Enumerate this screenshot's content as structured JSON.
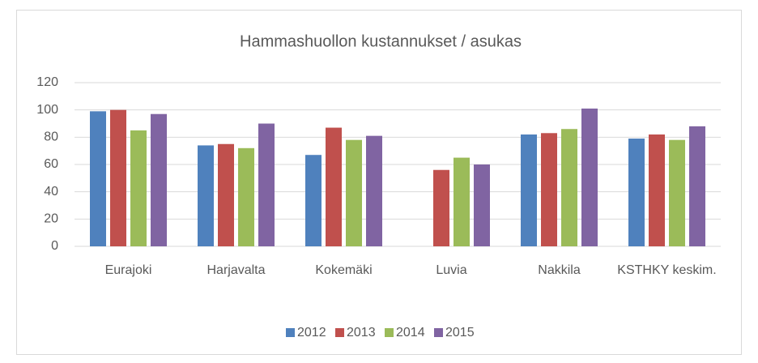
{
  "chart_data": {
    "type": "bar",
    "title": "Hammashuollon kustannukset / asukas",
    "categories": [
      "Eurajoki",
      "Harjavalta",
      "Kokemäki",
      "Luvia",
      "Nakkila",
      "KSTHKY keskim."
    ],
    "series": [
      {
        "name": "2012",
        "color": "#4f81bd",
        "values": [
          99,
          74,
          67,
          null,
          82,
          79
        ]
      },
      {
        "name": "2013",
        "color": "#c0504d",
        "values": [
          100,
          75,
          87,
          56,
          83,
          82
        ]
      },
      {
        "name": "2014",
        "color": "#9bbb59",
        "values": [
          85,
          72,
          78,
          65,
          86,
          78
        ]
      },
      {
        "name": "2015",
        "color": "#8064a2",
        "values": [
          97,
          90,
          81,
          60,
          101,
          88
        ]
      }
    ],
    "ylim": [
      0,
      120
    ],
    "yticks": [
      0,
      20,
      40,
      60,
      80,
      100,
      120
    ],
    "grid": true,
    "legend": "bottom"
  }
}
